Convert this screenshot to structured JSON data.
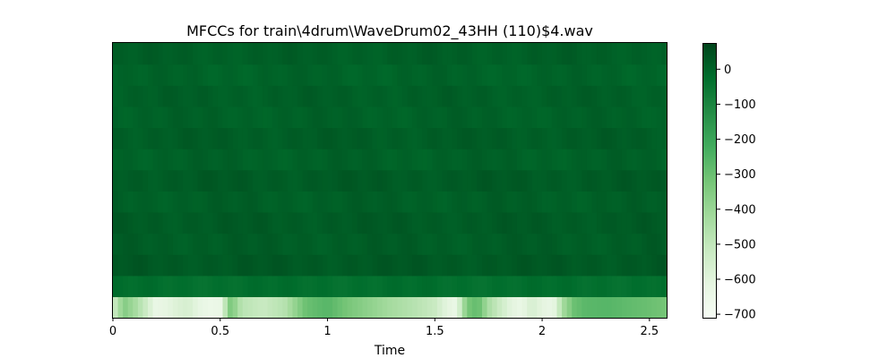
{
  "chart_data": {
    "type": "heatmap",
    "title": "MFCCs for train\\4drum\\WaveDrum02_43HH (110)$4.wav",
    "xlabel": "Time",
    "ylabel": "",
    "xlim": [
      0,
      2.58
    ],
    "x_ticks": [
      0,
      0.5,
      1,
      1.5,
      2,
      2.5
    ],
    "x_tick_labels": [
      "0",
      "0.5",
      "1",
      "1.5",
      "2",
      "2.5"
    ],
    "n_coefficients": 13,
    "n_frames": 111,
    "colormap": "Greens_r",
    "colorbar": {
      "range": [
        -710,
        75
      ],
      "ticks": [
        0,
        -100,
        -200,
        -300,
        -400,
        -500,
        -600,
        -700
      ],
      "tick_labels": [
        "0",
        "−100",
        "−200",
        "−300",
        "−400",
        "−500",
        "−600",
        "−700"
      ]
    },
    "coefficient_means": [
      -470,
      -30,
      25,
      15,
      20,
      10,
      20,
      5,
      15,
      5,
      10,
      0,
      10
    ],
    "coefficient_0_profile": {
      "time": [
        0,
        0.05,
        0.1,
        0.15,
        0.2,
        0.25,
        0.3,
        0.35,
        0.4,
        0.45,
        0.5,
        0.55,
        0.6,
        0.7,
        0.8,
        0.9,
        1.0,
        1.1,
        1.2,
        1.3,
        1.4,
        1.5,
        1.55,
        1.6,
        1.65,
        1.7,
        1.75,
        1.8,
        1.85,
        1.9,
        1.95,
        2.0,
        2.05,
        2.1,
        2.15,
        2.2,
        2.3,
        2.4,
        2.5,
        2.58
      ],
      "value": [
        -550,
        -350,
        -420,
        -520,
        -640,
        -620,
        -580,
        -560,
        -620,
        -650,
        -640,
        -320,
        -480,
        -520,
        -470,
        -300,
        -260,
        -330,
        -380,
        -430,
        -470,
        -520,
        -600,
        -640,
        -330,
        -280,
        -440,
        -520,
        -600,
        -640,
        -560,
        -610,
        -640,
        -420,
        -300,
        -270,
        -260,
        -280,
        -300,
        -320
      ]
    },
    "grid": false,
    "legend": "none"
  }
}
